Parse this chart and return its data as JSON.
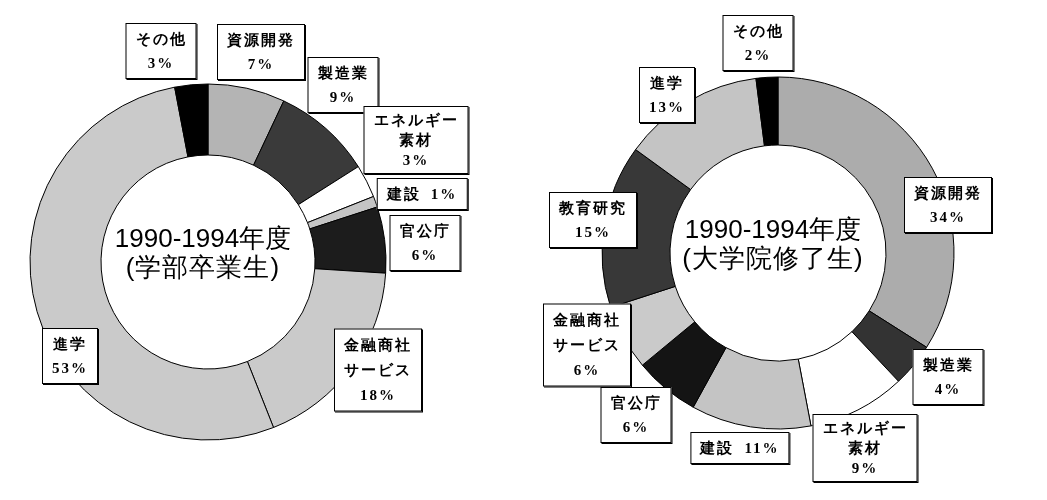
{
  "chart_data": [
    {
      "type": "donut",
      "title": "1990-1994年度",
      "subtitle": "(学部卒業生)",
      "categories": [
        "資源開発",
        "製造業",
        "エネルギー素材",
        "建設",
        "官公庁",
        "金融商社サービス",
        "進学",
        "その他"
      ],
      "values": [
        7,
        9,
        3,
        1,
        6,
        18,
        53,
        3
      ],
      "value_labels": [
        "7%",
        "9%",
        "3%",
        "1%",
        "6%",
        "18%",
        "53%",
        "3%"
      ],
      "colors": [
        "#b4b4b4",
        "#3a3a3a",
        "#ffffff",
        "#c4c4c4",
        "#1c1c1c",
        "#cacaca",
        "#cacaca",
        "#000000"
      ]
    },
    {
      "type": "donut",
      "title": "1990-1994年度",
      "subtitle": "(大学院修了生)",
      "categories": [
        "資源開発",
        "製造業",
        "エネルギー素材",
        "建設",
        "官公庁",
        "金融商社サービス",
        "教育研究",
        "進学",
        "その他"
      ],
      "values": [
        34,
        4,
        9,
        11,
        6,
        6,
        15,
        13,
        2
      ],
      "value_labels": [
        "34%",
        "4%",
        "9%",
        "11%",
        "6%",
        "6%",
        "15%",
        "13%",
        "2%"
      ],
      "colors": [
        "#acacac",
        "#333333",
        "#ffffff",
        "#c4c4c4",
        "#141414",
        "#cacaca",
        "#383838",
        "#c4c4c4",
        "#000000"
      ]
    }
  ]
}
